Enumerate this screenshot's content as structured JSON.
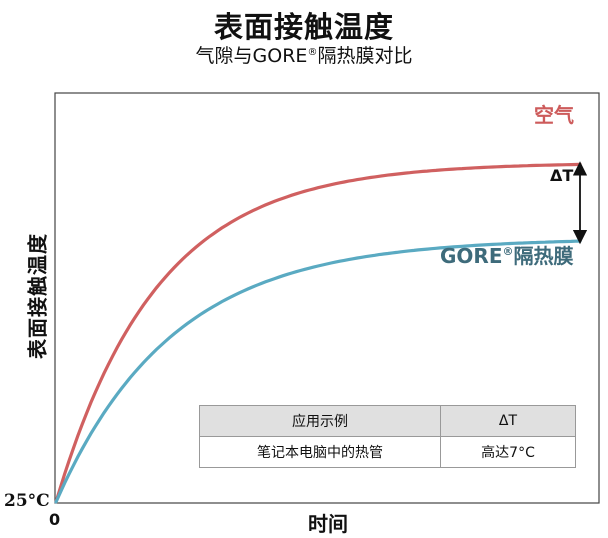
{
  "chart_data": {
    "type": "line",
    "title": "表面接触温度",
    "subtitle_main": "气隙与GORE",
    "subtitle_mark": "®",
    "subtitle_rest": "隔热膜对比",
    "ylabel": "表面接触温度",
    "xlabel": "时间",
    "y_min_label": "25°C",
    "x_min_label": "0",
    "grid": false,
    "series": [
      {
        "name": "空气",
        "color": "#d06060",
        "plateau": 0.83,
        "rate": 5.2
      },
      {
        "name_main": "GORE",
        "name_mark": "®",
        "name_rest": "隔热膜",
        "color": "#5aaac2",
        "plateau": 0.645,
        "rate": 4.5
      }
    ],
    "annotation": {
      "label": "ΔT"
    },
    "table": {
      "headers": [
        "应用示例",
        "ΔT"
      ],
      "rows": [
        [
          "笔记本电脑中的热管",
          "高达7°C"
        ]
      ]
    }
  }
}
